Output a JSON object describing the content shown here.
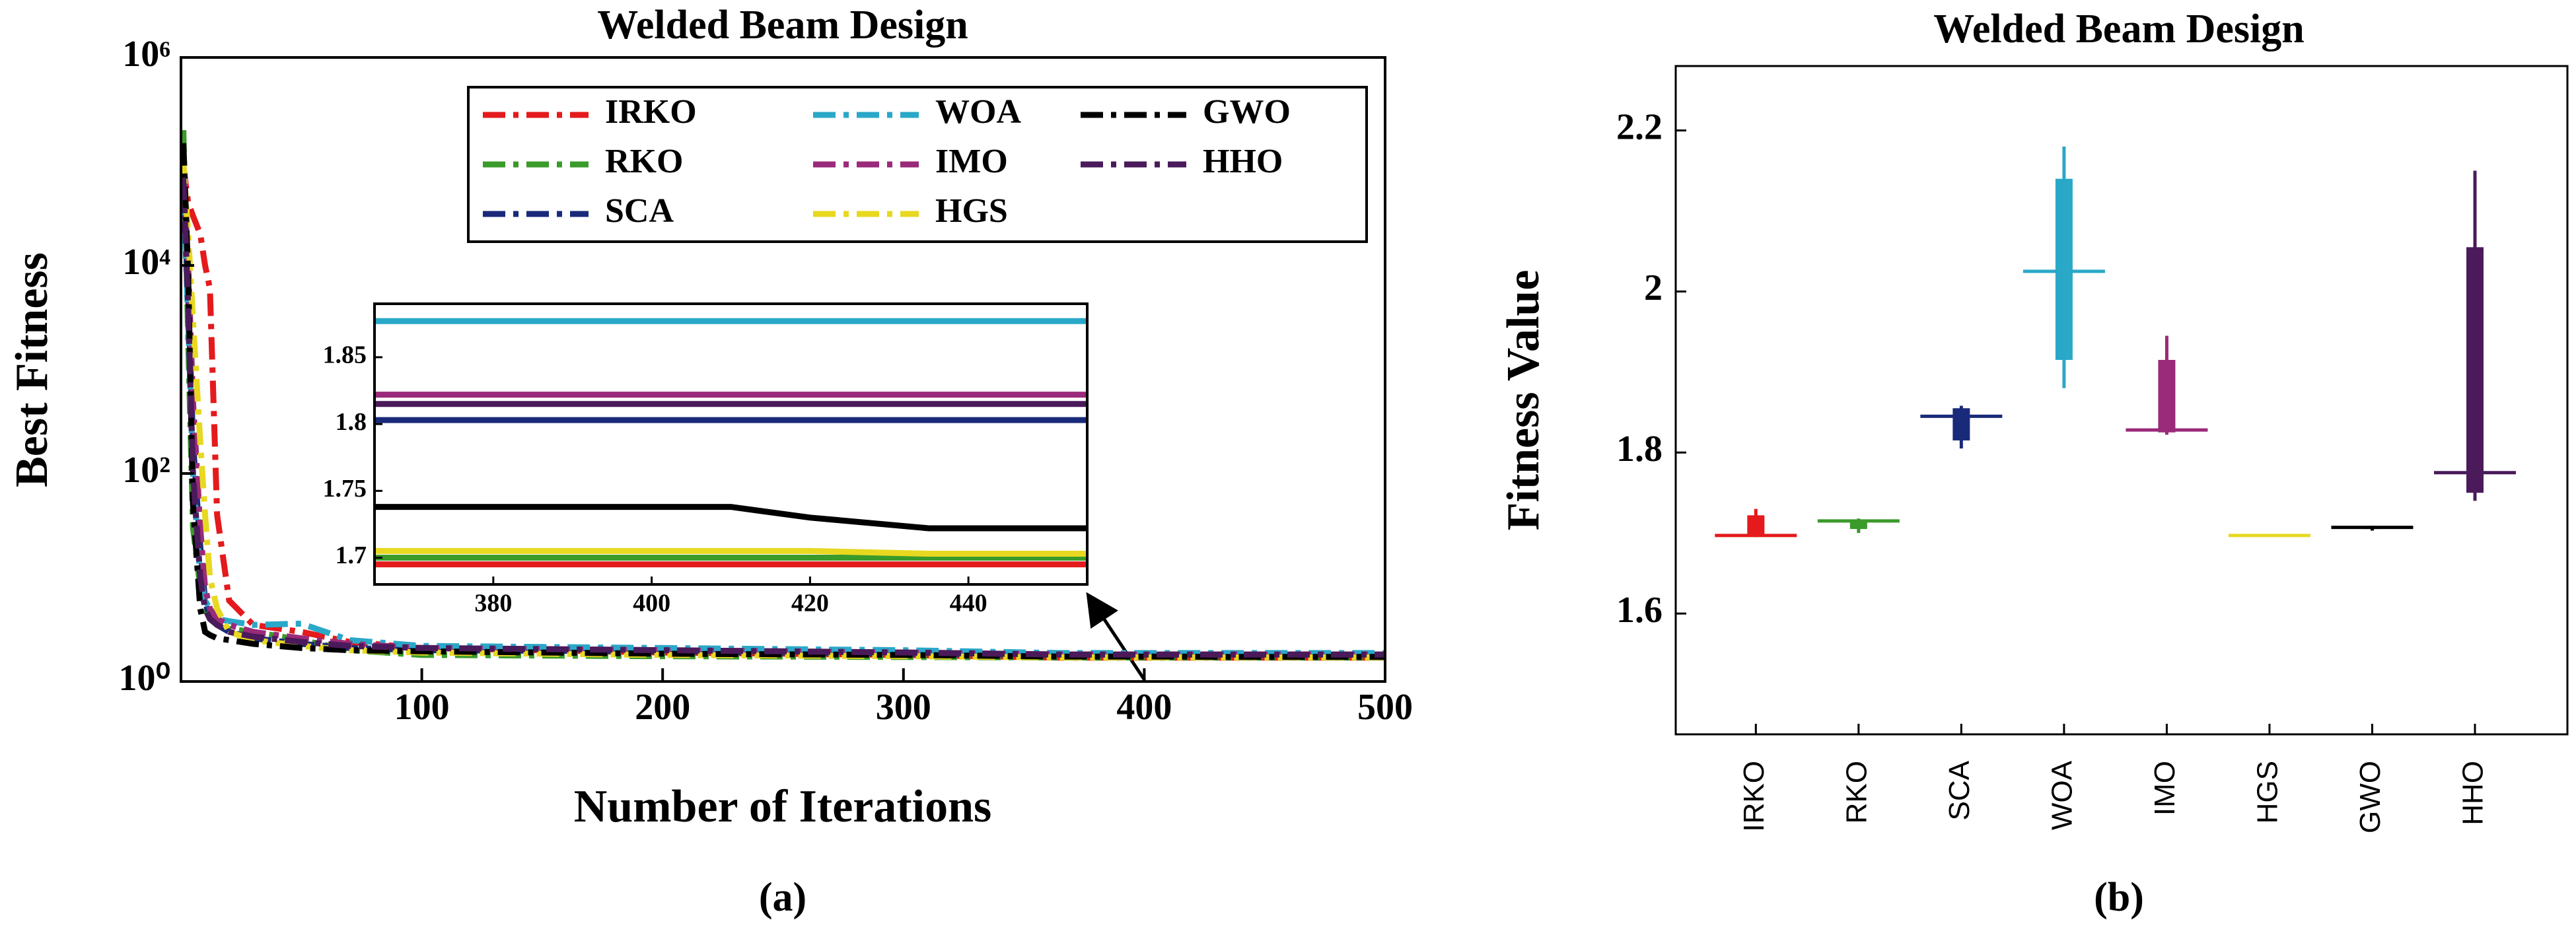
{
  "chart_data": [
    {
      "type": "line",
      "title": "Welded Beam Design",
      "xlabel": "Number of Iterations",
      "ylabel": "Best Fitness",
      "caption": "(a)",
      "ylog": true,
      "xlim": [
        0,
        500
      ],
      "ylim": [
        1,
        1000000
      ],
      "xticks": [
        100,
        200,
        300,
        400,
        500
      ],
      "yticks": [
        {
          "value": 1,
          "label": "10⁰"
        },
        {
          "value": 100,
          "label": "10²"
        },
        {
          "value": 10000,
          "label": "10⁴"
        },
        {
          "value": 1000000,
          "label": "10⁶"
        }
      ],
      "legend": "upper right",
      "x": [
        1,
        3,
        5,
        8,
        10,
        12,
        15,
        20,
        30,
        50,
        70,
        100,
        200,
        300,
        365,
        410,
        420,
        435,
        455,
        500
      ],
      "series": [
        {
          "name": "IRKO",
          "color": "#e41a1c",
          "values": [
            90000,
            40000,
            30000,
            20000,
            10000,
            6000,
            40,
            6,
            3.5,
            3,
            2.4,
            2.1,
            1.9,
            1.8,
            1.695,
            1.695,
            1.695,
            1.695,
            1.695,
            1.695
          ]
        },
        {
          "name": "RKO",
          "color": "#3a9a2a",
          "values": [
            200000,
            2000,
            30,
            8,
            5,
            4,
            3.5,
            3.2,
            3,
            2.5,
            2,
            1.8,
            1.75,
            1.72,
            1.7,
            1.7,
            1.7,
            1.7,
            1.7,
            1.7
          ]
        },
        {
          "name": "SCA",
          "color": "#1a2a7a",
          "values": [
            60000,
            5000,
            200,
            20,
            6,
            4,
            3.5,
            3,
            2.6,
            2.3,
            2.1,
            2.0,
            1.95,
            1.85,
            1.803,
            1.803,
            1.803,
            1.803,
            1.803,
            1.803
          ]
        },
        {
          "name": "WOA",
          "color": "#2aa8c8",
          "values": [
            50000,
            3000,
            100,
            10,
            6,
            5,
            4,
            3.8,
            3.5,
            3.6,
            2.5,
            2.2,
            2.1,
            2.0,
            1.877,
            1.877,
            1.877,
            1.877,
            1.877,
            1.877
          ]
        },
        {
          "name": "IMO",
          "color": "#9a2a7a",
          "values": [
            80000,
            10000,
            500,
            30,
            8,
            5,
            4,
            3.5,
            3,
            2.6,
            2.3,
            2.1,
            2.0,
            1.9,
            1.822,
            1.822,
            1.822,
            1.822,
            1.822,
            1.822
          ]
        },
        {
          "name": "HGS",
          "color": "#e8d820",
          "values": [
            100000,
            20000,
            3000,
            200,
            40,
            10,
            5,
            3,
            2.5,
            2.2,
            2.0,
            1.9,
            1.8,
            1.75,
            1.705,
            1.705,
            1.705,
            1.703,
            1.703,
            1.703
          ]
        },
        {
          "name": "GWO",
          "color": "#000000",
          "values": [
            150000,
            8000,
            50,
            5,
            3,
            2.8,
            2.6,
            2.5,
            2.3,
            2.1,
            2.0,
            1.95,
            1.85,
            1.8,
            1.738,
            1.738,
            1.73,
            1.722,
            1.722,
            1.722
          ]
        },
        {
          "name": "HHO",
          "color": "#4a1a5a",
          "values": [
            70000,
            4000,
            100,
            10,
            5,
            4,
            3.5,
            3,
            2.7,
            2.4,
            2.2,
            2.1,
            2.0,
            1.9,
            1.815,
            1.815,
            1.815,
            1.815,
            1.815,
            1.815
          ]
        }
      ],
      "inset": {
        "xlim": [
          365,
          455
        ],
        "ylim": [
          1.68,
          1.89
        ],
        "xticks": [
          380,
          400,
          420,
          440
        ],
        "yticks": [
          1.7,
          1.75,
          1.8,
          1.85
        ]
      }
    },
    {
      "type": "box",
      "title": "Welded Beam Design",
      "ylabel": "Fitness Value",
      "caption": "(b)",
      "ylim": [
        1.45,
        2.28
      ],
      "yticks": [
        1.6,
        1.8,
        2,
        2.2
      ],
      "categories": [
        "IRKO",
        "RKO",
        "SCA",
        "WOA",
        "IMO",
        "HGS",
        "GWO",
        "HHO"
      ],
      "colors": [
        "#e41a1c",
        "#3a9a2a",
        "#1a2a7a",
        "#2aa8c8",
        "#9a2a7a",
        "#e8d820",
        "#000000",
        "#4a1a5a"
      ],
      "boxes": [
        {
          "min": 1.695,
          "q1": 1.697,
          "median": 1.697,
          "q3": 1.722,
          "max": 1.73
        },
        {
          "min": 1.7,
          "q1": 1.705,
          "median": 1.715,
          "q3": 1.715,
          "max": 1.718
        },
        {
          "min": 1.805,
          "q1": 1.815,
          "median": 1.845,
          "q3": 1.855,
          "max": 1.858
        },
        {
          "min": 1.88,
          "q1": 1.915,
          "median": 2.025,
          "q3": 2.14,
          "max": 2.18
        },
        {
          "min": 1.822,
          "q1": 1.825,
          "median": 1.828,
          "q3": 1.915,
          "max": 1.945
        },
        {
          "min": 1.696,
          "q1": 1.697,
          "median": 1.697,
          "q3": 1.698,
          "max": 1.698
        },
        {
          "min": 1.703,
          "q1": 1.705,
          "median": 1.707,
          "q3": 1.708,
          "max": 1.709
        },
        {
          "min": 1.74,
          "q1": 1.75,
          "median": 1.775,
          "q3": 2.055,
          "max": 2.15
        }
      ]
    }
  ]
}
